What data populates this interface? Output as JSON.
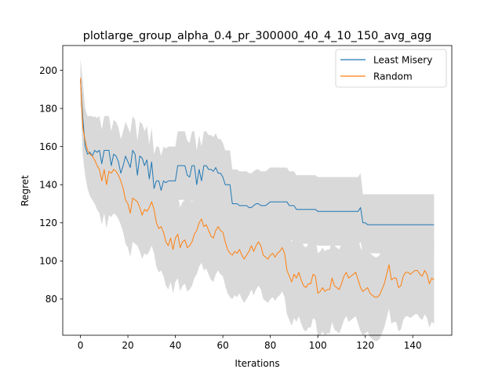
{
  "chart_data": {
    "type": "line",
    "title": "plotlarge_group_alpha_0.4_pr_300000_40_4_10_150_avg_agg",
    "xlabel": "Iterations",
    "ylabel": "Regret",
    "xlim": [
      -7.45,
      156.45
    ],
    "ylim": [
      61,
      213
    ],
    "xticks": [
      0,
      20,
      40,
      60,
      80,
      100,
      120,
      140
    ],
    "yticks": [
      80,
      100,
      120,
      140,
      160,
      180,
      200
    ],
    "grid": false,
    "legend_position": "top-right",
    "colors": {
      "least_misery": "#1f77b4",
      "random": "#ff7f0e",
      "band": "#d9d9d9"
    },
    "x": [
      0,
      1,
      2,
      3,
      4,
      5,
      6,
      7,
      8,
      9,
      10,
      11,
      12,
      13,
      14,
      15,
      16,
      17,
      18,
      19,
      20,
      21,
      22,
      23,
      24,
      25,
      26,
      27,
      28,
      29,
      30,
      31,
      32,
      33,
      34,
      35,
      36,
      37,
      38,
      39,
      40,
      41,
      42,
      43,
      44,
      45,
      46,
      47,
      48,
      49,
      50,
      51,
      52,
      53,
      54,
      55,
      56,
      57,
      58,
      59,
      60,
      61,
      62,
      63,
      64,
      65,
      66,
      67,
      68,
      69,
      70,
      71,
      72,
      73,
      74,
      75,
      76,
      77,
      78,
      79,
      80,
      81,
      82,
      83,
      84,
      85,
      86,
      87,
      88,
      89,
      90,
      91,
      92,
      93,
      94,
      95,
      96,
      97,
      98,
      99,
      100,
      101,
      102,
      103,
      104,
      105,
      106,
      107,
      108,
      109,
      110,
      111,
      112,
      113,
      114,
      115,
      116,
      117,
      118,
      119,
      120,
      121,
      122,
      123,
      124,
      125,
      126,
      127,
      128,
      129,
      130,
      131,
      132,
      133,
      134,
      135,
      136,
      137,
      138,
      139,
      140,
      141,
      142,
      143,
      144,
      145,
      146,
      147,
      148,
      149
    ],
    "series": [
      {
        "name": "Least Misery",
        "values": [
          195,
          175,
          160,
          156,
          157,
          155,
          158,
          157,
          158,
          151,
          158,
          158,
          158,
          150,
          156,
          155,
          152,
          146,
          150,
          155,
          152,
          149,
          158,
          156,
          145,
          155,
          154,
          150,
          153,
          143,
          152,
          138,
          142,
          142,
          137,
          142,
          141,
          142,
          142,
          142,
          142,
          150,
          150,
          150,
          150,
          145,
          144,
          150,
          150,
          140,
          148,
          142,
          150,
          150,
          148,
          148,
          147,
          149,
          146,
          146,
          144,
          140,
          140,
          140,
          130,
          130,
          130,
          129,
          129,
          129,
          129,
          128,
          128,
          129,
          130,
          130,
          129,
          129,
          129,
          130,
          131,
          131,
          131,
          131,
          131,
          131,
          131,
          131,
          129,
          129,
          129,
          127,
          127,
          127,
          127,
          127,
          127,
          127,
          127,
          127,
          126,
          126,
          126,
          126,
          126,
          126,
          126,
          126,
          126,
          126,
          126,
          126,
          126,
          126,
          126,
          126,
          126,
          126,
          128,
          120,
          120,
          119,
          119,
          119,
          119,
          119,
          119,
          119,
          119,
          119,
          119,
          119,
          119,
          119,
          119,
          119,
          119,
          119,
          119,
          119,
          119,
          119,
          119,
          119,
          119,
          119,
          119,
          119,
          119,
          119
        ],
        "lower": [
          182,
          165,
          150,
          140,
          140,
          135,
          140,
          140,
          140,
          132,
          140,
          140,
          140,
          132,
          138,
          137,
          134,
          128,
          132,
          137,
          134,
          131,
          140,
          138,
          127,
          137,
          136,
          132,
          135,
          125,
          134,
          120,
          124,
          124,
          119,
          124,
          123,
          124,
          124,
          124,
          124,
          132,
          132,
          132,
          132,
          127,
          126,
          132,
          132,
          122,
          130,
          124,
          132,
          132,
          130,
          130,
          129,
          131,
          128,
          128,
          126,
          122,
          122,
          122,
          112,
          112,
          112,
          111,
          111,
          111,
          111,
          110,
          110,
          111,
          112,
          112,
          111,
          111,
          111,
          112,
          113,
          113,
          113,
          113,
          113,
          113,
          113,
          113,
          111,
          111,
          111,
          109,
          109,
          109,
          109,
          109,
          109,
          109,
          109,
          109,
          108,
          108,
          108,
          108,
          108,
          108,
          108,
          108,
          108,
          108,
          108,
          108,
          108,
          108,
          108,
          108,
          108,
          108,
          110,
          104,
          104,
          104,
          104,
          104,
          104,
          104,
          104,
          104,
          104,
          104,
          104,
          104,
          104,
          104,
          104,
          104,
          104,
          104,
          104,
          104,
          104,
          104,
          104,
          104,
          104,
          104,
          104,
          104,
          104,
          104
        ],
        "upper": [
          206,
          194,
          180,
          175,
          175,
          173,
          176,
          175,
          176,
          169,
          176,
          176,
          176,
          168,
          174,
          173,
          170,
          164,
          168,
          173,
          170,
          167,
          176,
          174,
          163,
          173,
          172,
          168,
          171,
          161,
          170,
          156,
          160,
          160,
          155,
          160,
          159,
          160,
          160,
          160,
          160,
          168,
          168,
          168,
          168,
          163,
          162,
          168,
          168,
          158,
          166,
          160,
          168,
          168,
          166,
          166,
          165,
          167,
          164,
          164,
          162,
          158,
          158,
          158,
          148,
          148,
          148,
          147,
          147,
          147,
          147,
          146,
          146,
          147,
          148,
          148,
          147,
          147,
          147,
          148,
          149,
          149,
          149,
          149,
          149,
          149,
          149,
          149,
          147,
          147,
          147,
          145,
          145,
          145,
          145,
          145,
          145,
          145,
          145,
          145,
          144,
          144,
          144,
          144,
          144,
          144,
          144,
          144,
          144,
          144,
          144,
          144,
          144,
          144,
          144,
          144,
          144,
          144,
          146,
          135,
          135,
          135,
          135,
          135,
          135,
          135,
          135,
          135,
          135,
          135,
          135,
          135,
          135,
          135,
          135,
          135,
          135,
          135,
          135,
          135,
          135,
          135,
          135,
          135,
          135,
          135,
          135,
          135,
          135,
          135
        ]
      },
      {
        "name": "Random",
        "values": [
          196,
          170,
          163,
          158,
          156,
          155,
          153,
          150,
          148,
          142,
          148,
          140,
          147,
          146,
          148,
          147,
          145,
          142,
          138,
          132,
          130,
          125,
          133,
          132,
          131,
          128,
          124,
          127,
          126,
          128,
          131,
          127,
          120,
          117,
          118,
          115,
          110,
          108,
          112,
          106,
          112,
          114,
          107,
          110,
          111,
          107,
          108,
          110,
          114,
          116,
          120,
          122,
          118,
          119,
          116,
          113,
          112,
          116,
          118,
          116,
          115,
          110,
          106,
          104,
          103,
          105,
          104,
          106,
          103,
          101,
          103,
          105,
          108,
          105,
          108,
          110,
          108,
          103,
          102,
          101,
          103,
          104,
          102,
          104,
          105,
          107,
          104,
          95,
          92,
          89,
          93,
          91,
          94,
          90,
          87,
          86,
          88,
          88,
          93,
          92,
          83,
          84,
          86,
          84,
          85,
          85,
          91,
          87,
          86,
          85,
          88,
          92,
          94,
          91,
          92,
          93,
          94,
          90,
          86,
          84,
          85,
          86,
          83,
          82,
          81,
          81,
          82,
          85,
          88,
          93,
          98,
          90,
          91,
          91,
          86,
          87,
          92,
          94,
          94,
          93,
          94,
          95,
          95,
          93,
          92,
          95,
          93,
          88,
          91,
          90
        ],
        "lower": [
          186,
          155,
          145,
          138,
          134,
          132,
          130,
          127,
          125,
          119,
          125,
          117,
          124,
          123,
          125,
          124,
          122,
          119,
          115,
          109,
          107,
          102,
          110,
          109,
          108,
          105,
          101,
          104,
          103,
          105,
          108,
          104,
          97,
          94,
          95,
          92,
          87,
          85,
          89,
          83,
          89,
          91,
          84,
          87,
          88,
          84,
          85,
          87,
          91,
          93,
          97,
          99,
          95,
          96,
          93,
          90,
          89,
          93,
          95,
          93,
          92,
          87,
          83,
          81,
          80,
          82,
          81,
          83,
          80,
          78,
          80,
          82,
          85,
          82,
          85,
          87,
          85,
          80,
          79,
          78,
          80,
          81,
          79,
          81,
          82,
          84,
          81,
          72,
          69,
          66,
          70,
          68,
          71,
          67,
          64,
          63,
          65,
          65,
          70,
          69,
          60,
          61,
          63,
          61,
          62,
          62,
          68,
          64,
          63,
          62,
          65,
          69,
          71,
          68,
          69,
          70,
          71,
          67,
          63,
          61,
          62,
          63,
          60,
          59,
          58,
          58,
          59,
          62,
          65,
          70,
          75,
          67,
          68,
          68,
          63,
          64,
          69,
          71,
          71,
          70,
          71,
          72,
          72,
          70,
          69,
          72,
          70,
          65,
          68,
          67
        ],
        "upper": [
          199,
          185,
          180,
          176,
          176,
          176,
          175,
          172,
          170,
          164,
          168,
          160,
          166,
          165,
          167,
          166,
          164,
          161,
          158,
          153,
          151,
          146,
          154,
          153,
          152,
          149,
          145,
          148,
          147,
          149,
          152,
          148,
          141,
          138,
          139,
          136,
          131,
          129,
          133,
          127,
          133,
          135,
          128,
          131,
          132,
          128,
          129,
          131,
          135,
          137,
          141,
          143,
          139,
          140,
          137,
          134,
          133,
          137,
          139,
          137,
          136,
          131,
          127,
          125,
          124,
          126,
          125,
          127,
          124,
          122,
          124,
          126,
          129,
          126,
          129,
          131,
          129,
          124,
          123,
          122,
          124,
          125,
          123,
          125,
          126,
          128,
          125,
          116,
          113,
          110,
          114,
          112,
          115,
          111,
          108,
          107,
          109,
          109,
          114,
          113,
          104,
          105,
          107,
          105,
          106,
          106,
          112,
          108,
          107,
          106,
          109,
          113,
          115,
          112,
          113,
          114,
          115,
          111,
          107,
          105,
          106,
          107,
          104,
          103,
          102,
          102,
          103,
          106,
          109,
          114,
          119,
          111,
          112,
          112,
          107,
          108,
          113,
          115,
          115,
          114,
          115,
          116,
          116,
          114,
          113,
          116,
          114,
          109,
          112,
          111
        ]
      }
    ]
  }
}
